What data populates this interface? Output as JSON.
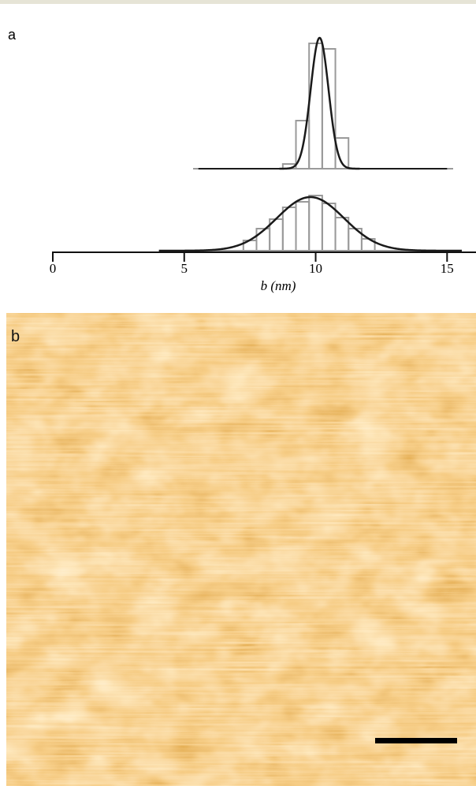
{
  "panel_labels": [
    "a",
    "b"
  ],
  "chart_data": {
    "type": "histogram",
    "x_label": "b (nm)",
    "xlim": [
      0,
      16.1
    ],
    "xticks": [
      0,
      5,
      10,
      15
    ],
    "ylim": [
      0,
      180
    ],
    "series": [
      {
        "bins": [
          8.75,
          9.25,
          9.75,
          10.25,
          10.75,
          11.25
        ],
        "counts": [
          6,
          61,
          159,
          152,
          39
        ],
        "color": "#9a9a9a",
        "fit": {
          "mean": 10.15,
          "sd": 0.34,
          "peak": 166,
          "color": "#1a1a1a"
        }
      },
      {
        "bins": [
          7.25,
          7.75,
          8.25,
          8.75,
          9.25,
          9.75,
          10.25,
          10.75,
          11.25,
          11.75,
          12.25
        ],
        "counts": [
          13,
          28,
          40,
          55,
          62,
          70,
          60,
          42,
          28,
          15
        ],
        "color": "#9a9a9a",
        "fit": {
          "mean": 9.8,
          "sd": 1.28,
          "peak": 68,
          "color": "#1a1a1a"
        }
      }
    ]
  }
}
